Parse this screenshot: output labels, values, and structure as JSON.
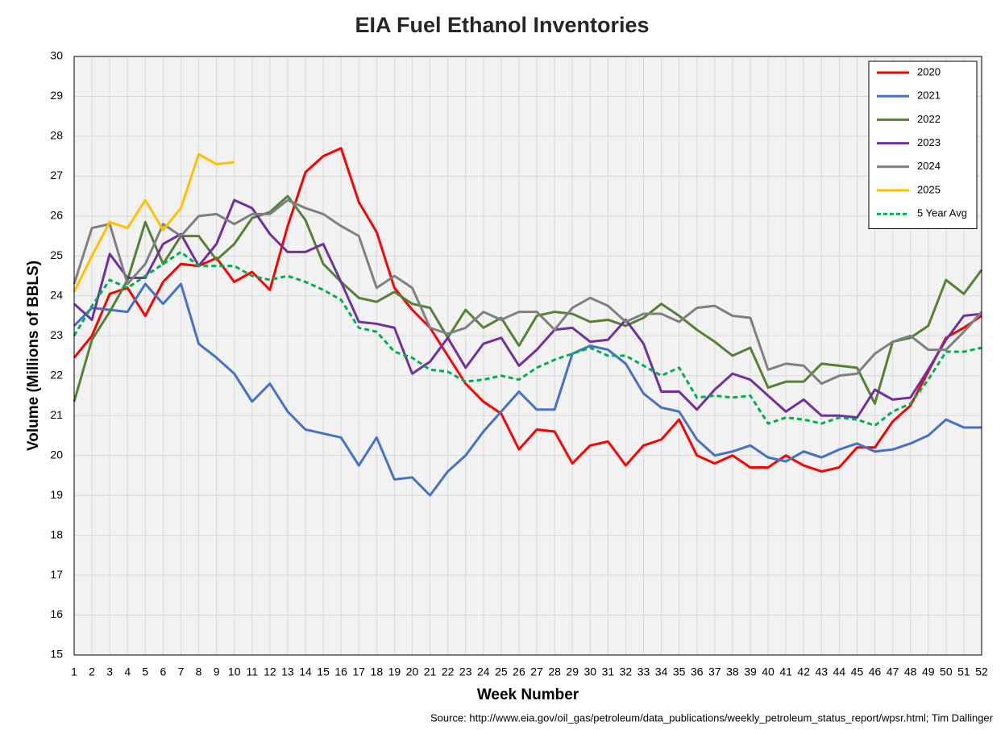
{
  "chart_data": {
    "type": "line",
    "title": "EIA Fuel Ethanol Inventories",
    "x_label": "Week Number",
    "y_label": "Volume (Millions of BBLS)",
    "source": "Source: http://www.eia.gov/oil_gas/petroleum/data_publications/weekly_petroleum_status_report/wpsr.html; Tim Dallinger",
    "x": [
      1,
      2,
      3,
      4,
      5,
      6,
      7,
      8,
      9,
      10,
      11,
      12,
      13,
      14,
      15,
      16,
      17,
      18,
      19,
      20,
      21,
      22,
      23,
      24,
      25,
      26,
      27,
      28,
      29,
      30,
      31,
      32,
      33,
      34,
      35,
      36,
      37,
      38,
      39,
      40,
      41,
      42,
      43,
      44,
      45,
      46,
      47,
      48,
      49,
      50,
      51,
      52
    ],
    "xlim": [
      1,
      52
    ],
    "xticks": [
      1,
      2,
      3,
      4,
      5,
      6,
      7,
      8,
      9,
      10,
      11,
      12,
      13,
      14,
      15,
      16,
      17,
      18,
      19,
      20,
      21,
      22,
      23,
      24,
      25,
      26,
      27,
      28,
      29,
      30,
      31,
      32,
      33,
      34,
      35,
      36,
      37,
      38,
      39,
      40,
      41,
      42,
      43,
      44,
      45,
      46,
      47,
      48,
      49,
      50,
      51,
      52
    ],
    "ylim": [
      15,
      30
    ],
    "yticks": [
      15,
      16,
      17,
      18,
      19,
      20,
      21,
      22,
      23,
      24,
      25,
      26,
      27,
      28,
      29,
      30
    ],
    "grid": true,
    "legend": "upper right",
    "series": [
      {
        "name": "2020",
        "color": "#ff0000",
        "dashed": false,
        "values": [
          22.45,
          23.0,
          24.05,
          24.2,
          23.5,
          24.35,
          24.8,
          24.75,
          24.95,
          24.35,
          24.6,
          24.15,
          25.75,
          27.1,
          27.5,
          27.7,
          26.35,
          25.6,
          24.2,
          23.65,
          23.2,
          22.5,
          21.8,
          21.35,
          21.05,
          20.15,
          20.65,
          20.6,
          19.8,
          20.25,
          20.35,
          19.75,
          20.25,
          20.4,
          20.9,
          20.0,
          19.8,
          20.0,
          19.7,
          19.7,
          20.0,
          19.75,
          19.6,
          19.7,
          20.2,
          20.2,
          20.85,
          21.25,
          22.1,
          22.95,
          23.2,
          23.5
        ]
      },
      {
        "name": "2021",
        "color": "#4472c4",
        "dashed": false,
        "values": [
          23.25,
          23.7,
          23.65,
          23.6,
          24.3,
          23.8,
          24.3,
          22.8,
          22.45,
          22.05,
          21.35,
          21.8,
          21.1,
          20.65,
          20.55,
          20.45,
          19.75,
          20.45,
          19.4,
          19.45,
          19.0,
          19.6,
          20.0,
          20.6,
          21.1,
          21.6,
          21.15,
          21.15,
          22.55,
          22.75,
          22.65,
          22.3,
          21.55,
          21.2,
          21.1,
          20.4,
          20.0,
          20.1,
          20.25,
          19.95,
          19.85,
          20.1,
          19.95,
          20.15,
          20.3,
          20.1,
          20.15,
          20.3,
          20.5,
          20.9,
          20.7,
          20.7
        ]
      },
      {
        "name": "2022",
        "color": "#548235",
        "dashed": false,
        "values": [
          21.35,
          22.9,
          23.6,
          24.4,
          25.85,
          24.8,
          25.5,
          25.5,
          24.9,
          25.3,
          25.95,
          26.1,
          26.5,
          25.9,
          24.8,
          24.35,
          23.95,
          23.85,
          24.1,
          23.8,
          23.7,
          22.95,
          23.65,
          23.2,
          23.45,
          22.75,
          23.5,
          23.6,
          23.55,
          23.35,
          23.4,
          23.25,
          23.45,
          23.8,
          23.5,
          23.15,
          22.85,
          22.5,
          22.7,
          21.7,
          21.85,
          21.85,
          22.3,
          22.25,
          22.2,
          21.3,
          22.85,
          22.95,
          23.25,
          24.4,
          24.05,
          24.65
        ]
      },
      {
        "name": "2023",
        "color": "#7030a0",
        "dashed": false,
        "values": [
          23.8,
          23.4,
          25.05,
          24.45,
          24.45,
          25.3,
          25.55,
          24.75,
          25.3,
          26.4,
          26.2,
          25.55,
          25.1,
          25.1,
          25.3,
          24.35,
          23.35,
          23.3,
          23.2,
          22.05,
          22.35,
          22.95,
          22.2,
          22.8,
          22.95,
          22.25,
          22.65,
          23.15,
          23.2,
          22.85,
          22.9,
          23.4,
          22.8,
          21.6,
          21.6,
          21.15,
          21.65,
          22.05,
          21.9,
          21.5,
          21.1,
          21.4,
          21.0,
          21.0,
          20.95,
          21.65,
          21.4,
          21.45,
          22.15,
          22.9,
          23.5,
          23.55
        ]
      },
      {
        "name": "2024",
        "color": "#808080",
        "dashed": false,
        "values": [
          24.3,
          25.7,
          25.8,
          24.3,
          24.8,
          25.8,
          25.5,
          26.0,
          26.05,
          25.8,
          26.05,
          26.05,
          26.4,
          26.2,
          26.05,
          25.75,
          25.5,
          24.2,
          24.5,
          24.2,
          23.2,
          23.05,
          23.2,
          23.6,
          23.4,
          23.6,
          23.6,
          23.15,
          23.7,
          23.95,
          23.75,
          23.35,
          23.55,
          23.55,
          23.35,
          23.7,
          23.75,
          23.5,
          23.45,
          22.15,
          22.3,
          22.25,
          21.8,
          22.0,
          22.05,
          22.55,
          22.85,
          23.0,
          22.65,
          22.65,
          23.1,
          23.6
        ]
      },
      {
        "name": "2025",
        "color": "#ffc000",
        "dashed": false,
        "values": [
          24.1,
          25.0,
          25.85,
          25.7,
          26.4,
          25.65,
          26.2,
          27.55,
          27.3,
          27.35,
          null,
          null,
          null,
          null,
          null,
          null,
          null,
          null,
          null,
          null,
          null,
          null,
          null,
          null,
          null,
          null,
          null,
          null,
          null,
          null,
          null,
          null,
          null,
          null,
          null,
          null,
          null,
          null,
          null,
          null,
          null,
          null,
          null,
          null,
          null,
          null,
          null,
          null,
          null,
          null,
          null,
          null
        ]
      },
      {
        "name": "5 Year Avg",
        "color": "#00b050",
        "dashed": true,
        "values": [
          23.0,
          23.75,
          24.4,
          24.2,
          24.5,
          24.8,
          25.1,
          24.75,
          24.75,
          24.75,
          24.5,
          24.4,
          24.5,
          24.35,
          24.15,
          23.9,
          23.2,
          23.1,
          22.6,
          22.45,
          22.15,
          22.1,
          21.85,
          21.9,
          22.0,
          21.9,
          22.2,
          22.4,
          22.55,
          22.7,
          22.5,
          22.5,
          22.25,
          22.0,
          22.2,
          21.45,
          21.5,
          21.45,
          21.5,
          20.8,
          20.95,
          20.9,
          20.8,
          20.95,
          20.9,
          20.75,
          21.1,
          21.3,
          21.9,
          22.6,
          22.6,
          22.7
        ]
      }
    ]
  }
}
